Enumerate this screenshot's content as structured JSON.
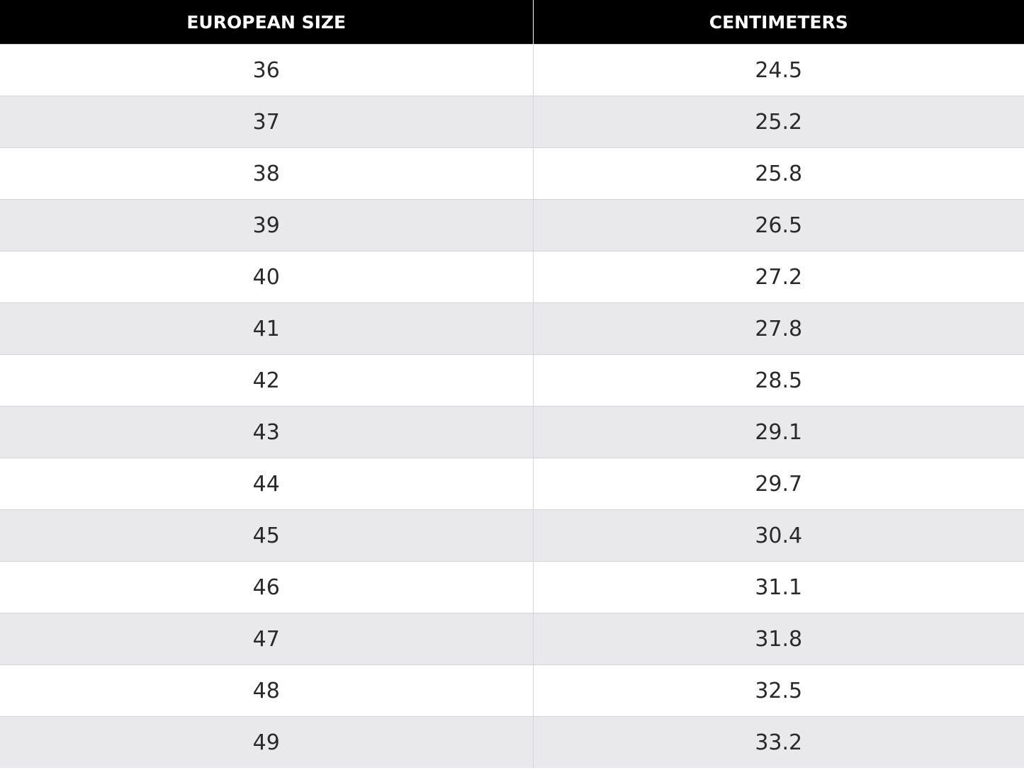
{
  "table": {
    "header": [
      "EUROPEAN SIZE",
      "CENTIMETERS"
    ],
    "rows": [
      [
        "36",
        "24.5"
      ],
      [
        "37",
        "25.2"
      ],
      [
        "38",
        "25.8"
      ],
      [
        "39",
        "26.5"
      ],
      [
        "40",
        "27.2"
      ],
      [
        "41",
        "27.8"
      ],
      [
        "42",
        "28.5"
      ],
      [
        "43",
        "29.1"
      ],
      [
        "44",
        "29.7"
      ],
      [
        "45",
        "30.4"
      ],
      [
        "46",
        "31.1"
      ],
      [
        "47",
        "31.8"
      ],
      [
        "48",
        "32.5"
      ],
      [
        "49",
        "33.2"
      ]
    ]
  }
}
